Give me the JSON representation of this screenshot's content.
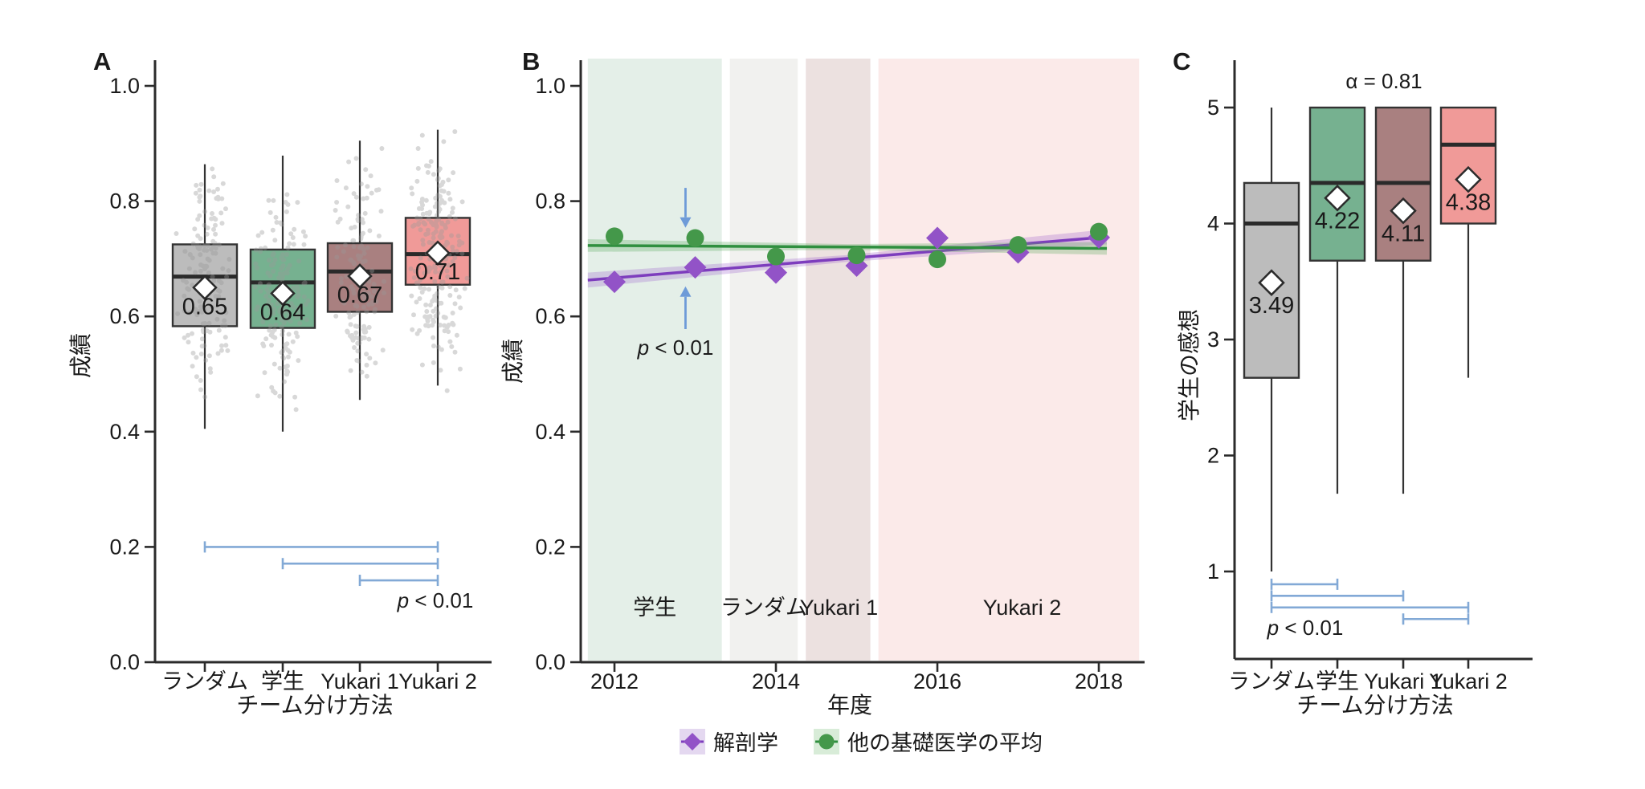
{
  "figure": {
    "background": "#ffffff"
  },
  "colors": {
    "bracket": "#82a9d6",
    "arrow": "#6e9bd8",
    "axis": "#2b2b2b",
    "text": "#1a1a1a",
    "mean_marker_fill": "#ffffff"
  },
  "legend": {
    "items": [
      {
        "label": "解剖学",
        "marker": "diamond",
        "marker_color": "#9253c7",
        "line_color": "#7d3dbd",
        "key_bg": "#e4d8f0"
      },
      {
        "label": "他の基礎医学の平均",
        "marker": "circle",
        "marker_color": "#44984a",
        "line_color": "#2f8f3f",
        "key_bg": "#d8ecd8"
      }
    ]
  },
  "chart_data": [
    {
      "panel_label": "A",
      "type": "box",
      "xlabel": "チーム分け方法",
      "ylabel": "成績",
      "categories": [
        "ランダム",
        "学生",
        "Yukari 1",
        "Yukari 2"
      ],
      "y_ticks": [
        {
          "label": "1.0",
          "v": 1.0
        },
        {
          "label": "0.8",
          "v": 0.8
        },
        {
          "label": "0.6",
          "v": 0.6
        },
        {
          "label": "0.4",
          "v": 0.4
        },
        {
          "label": "0.2",
          "v": 0.2
        },
        {
          "label": "0.0",
          "v": 0.0
        }
      ],
      "ylim": [
        0,
        1.04
      ],
      "box_colors": [
        "#bcbcbc",
        "#76b190",
        "#a98080",
        "#f09a98"
      ],
      "boxes": [
        {
          "category": "ランダム",
          "whisker_low": 0.405,
          "q1": 0.583,
          "median": 0.669,
          "q3": 0.725,
          "whisker_high": 0.864,
          "mean": 0.65,
          "mean_label": "0.65"
        },
        {
          "category": "学生",
          "whisker_low": 0.4,
          "q1": 0.58,
          "median": 0.659,
          "q3": 0.716,
          "whisker_high": 0.879,
          "mean": 0.64,
          "mean_label": "0.64"
        },
        {
          "category": "Yukari 1",
          "whisker_low": 0.455,
          "q1": 0.608,
          "median": 0.678,
          "q3": 0.727,
          "whisker_high": 0.905,
          "mean": 0.67,
          "mean_label": "0.67"
        },
        {
          "category": "Yukari 2",
          "whisker_low": 0.48,
          "q1": 0.655,
          "median": 0.708,
          "q3": 0.771,
          "whisker_high": 0.924,
          "mean": 0.71,
          "mean_label": "0.71"
        }
      ],
      "jitter": {
        "counts": [
          150,
          180,
          140,
          220
        ],
        "ranges": [
          [
            0.45,
            0.87
          ],
          [
            0.42,
            0.89
          ],
          [
            0.46,
            0.91
          ],
          [
            0.45,
            0.93
          ]
        ],
        "sd": 0.09,
        "color": "#9a9a9a",
        "opacity": 0.38
      },
      "significance_brackets": [
        {
          "from": 0,
          "to": 3,
          "y": 0.2
        },
        {
          "from": 1,
          "to": 3,
          "y": 0.171
        },
        {
          "from": 2,
          "to": 3,
          "y": 0.142
        }
      ],
      "p_label": "p < 0.01"
    },
    {
      "panel_label": "B",
      "type": "line",
      "xlabel": "年度",
      "ylabel": "成績",
      "x_ticks": [
        {
          "label": "2012",
          "v": 2012
        },
        {
          "label": "2014",
          "v": 2014
        },
        {
          "label": "2016",
          "v": 2016
        },
        {
          "label": "2018",
          "v": 2018
        }
      ],
      "xlim": [
        2011.58,
        2018.57
      ],
      "y_ticks": [
        {
          "label": "1.0",
          "v": 1.0
        },
        {
          "label": "0.8",
          "v": 0.8
        },
        {
          "label": "0.6",
          "v": 0.6
        },
        {
          "label": "0.4",
          "v": 0.4
        },
        {
          "label": "0.2",
          "v": 0.2
        },
        {
          "label": "0.0",
          "v": 0.0
        }
      ],
      "ylim": [
        0,
        1.04
      ],
      "regions": [
        {
          "label": "学生",
          "from": 2011.67,
          "to": 2013.33,
          "fill": "#e4efe8",
          "label_color": "#3f9460",
          "label_x": 2012.5
        },
        {
          "label": "ランダム",
          "from": 2013.43,
          "to": 2014.27,
          "fill": "#f1f1ef",
          "label_color": "#b9b9b9",
          "label_x": 2013.85
        },
        {
          "label": "Yukari 1",
          "from": 2014.37,
          "to": 2015.17,
          "fill": "#ece1e0",
          "label_color": "#a03c3c",
          "label_x": 2014.78
        },
        {
          "label": "Yukari 2",
          "from": 2015.27,
          "to": 2018.5,
          "fill": "#fbeae9",
          "label_color": "#ec7674",
          "label_x": 2017.05
        }
      ],
      "x": [
        2012,
        2013,
        2014,
        2015,
        2016,
        2017,
        2018
      ],
      "series": [
        {
          "name": "解剖学",
          "marker": "diamond",
          "marker_color": "#9253c7",
          "line_color": "#7d3dbd",
          "ribbon_color": "rgba(146,83,199,0.26)",
          "values": [
            0.66,
            0.685,
            0.676,
            0.688,
            0.736,
            0.711,
            0.737
          ],
          "trend": {
            "x1": 2011.67,
            "y1": 0.663,
            "x2": 2018.1,
            "y2": 0.738
          },
          "ribbon_halfwidth": [
            0.013,
            0.006,
            0.013
          ]
        },
        {
          "name": "他の基礎医学の平均",
          "marker": "circle",
          "marker_color": "#44984a",
          "line_color": "#2f8f3f",
          "ribbon_color": "rgba(88,168,94,0.30)",
          "values": [
            0.739,
            0.736,
            0.704,
            0.706,
            0.699,
            0.724,
            0.747
          ],
          "trend": {
            "x1": 2011.67,
            "y1": 0.723,
            "x2": 2018.1,
            "y2": 0.718
          },
          "ribbon_halfwidth": [
            0.011,
            0.005,
            0.011
          ]
        }
      ],
      "arrows": [
        {
          "x": 2012.88,
          "from": 0.823,
          "to": 0.772,
          "dir": "down"
        },
        {
          "x": 2012.88,
          "from": 0.578,
          "to": 0.634,
          "dir": "up"
        }
      ],
      "p_label": "p < 0.01"
    },
    {
      "panel_label": "C",
      "type": "box",
      "xlabel": "チーム分け方法",
      "ylabel": "学生の感想",
      "categories": [
        "ランダム",
        "学生",
        "Yukari 1",
        "Yukari 2"
      ],
      "y_ticks": [
        {
          "label": "5",
          "v": 5
        },
        {
          "label": "4",
          "v": 4
        },
        {
          "label": "3",
          "v": 3
        },
        {
          "label": "2",
          "v": 2
        },
        {
          "label": "1",
          "v": 1
        }
      ],
      "ylim": [
        0.2,
        5.4
      ],
      "box_colors": [
        "#bcbcbc",
        "#76b190",
        "#a98080",
        "#f09a98"
      ],
      "boxes": [
        {
          "category": "ランダム",
          "whisker_low": 1.0,
          "q1": 2.67,
          "median": 4.0,
          "q3": 4.35,
          "whisker_high": 5.0,
          "mean": 3.49,
          "mean_label": "3.49"
        },
        {
          "category": "学生",
          "whisker_low": 1.67,
          "q1": 3.68,
          "median": 4.35,
          "q3": 5.0,
          "whisker_high": 5.0,
          "mean": 4.22,
          "mean_label": "4.22"
        },
        {
          "category": "Yukari 1",
          "whisker_low": 1.67,
          "q1": 3.68,
          "median": 4.35,
          "q3": 5.0,
          "whisker_high": 5.0,
          "mean": 4.11,
          "mean_label": "4.11"
        },
        {
          "category": "Yukari 2",
          "whisker_low": 2.67,
          "q1": 4.0,
          "median": 4.68,
          "q3": 5.0,
          "whisker_high": 5.0,
          "mean": 4.38,
          "mean_label": "4.38"
        }
      ],
      "alpha_label": "α = 0.81",
      "significance_brackets": [
        {
          "from": 0,
          "to": 1,
          "y": 0.89
        },
        {
          "from": 0,
          "to": 2,
          "y": 0.79
        },
        {
          "from": 0,
          "to": 3,
          "y": 0.69
        },
        {
          "from": 2,
          "to": 3,
          "y": 0.59
        }
      ],
      "p_label": "p < 0.01"
    }
  ]
}
